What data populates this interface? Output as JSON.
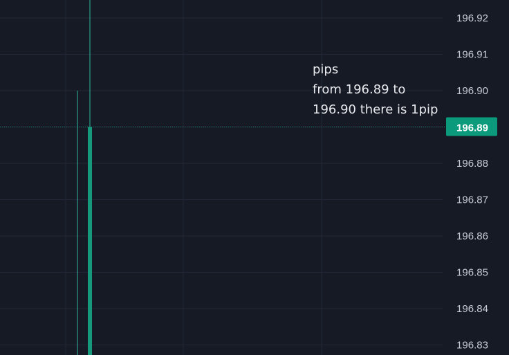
{
  "colors": {
    "background": "#161a25",
    "grid": "#232838",
    "candle": "#16987c",
    "wick": "#2fb8a0",
    "price_line": "#1f8f7a",
    "badge": "#0b9a7c",
    "axis_text": "#c8ccd6"
  },
  "chart_data": {
    "type": "candlestick",
    "title": "",
    "xlabel": "",
    "ylabel": "",
    "ylim": [
      196.825,
      196.935
    ],
    "y_ticks": [
      "196.92",
      "196.91",
      "196.90",
      "196.89",
      "196.88",
      "196.87",
      "196.86",
      "196.85",
      "196.84",
      "196.83"
    ],
    "grid": true,
    "current_price": 196.89,
    "current_price_label": "196.89",
    "candles": [
      {
        "name": "candle-1",
        "wick_high": 196.9,
        "wick_low": 196.825,
        "open": null,
        "close": null,
        "direction": "up"
      },
      {
        "name": "candle-2",
        "wick_high": 196.935,
        "wick_low": 196.825,
        "open": 196.825,
        "close": 196.89,
        "direction": "up"
      }
    ],
    "annotation": {
      "lines": [
        "pips",
        "from 196.89 to",
        "196.90 there is 1pip"
      ]
    }
  }
}
